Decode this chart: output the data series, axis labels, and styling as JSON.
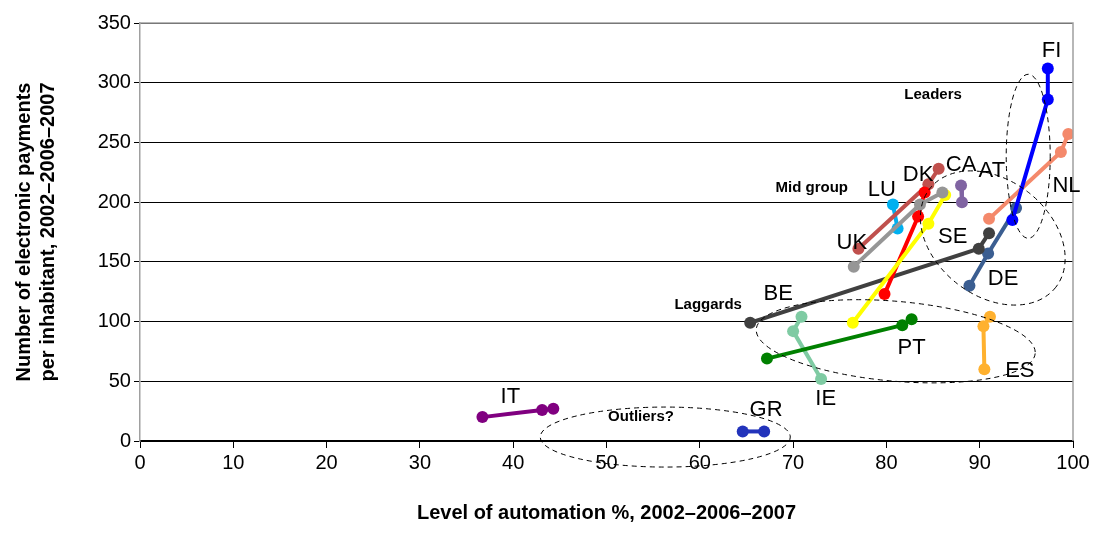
{
  "chart_data": {
    "type": "line",
    "xlabel": "Level of automation %, 2002–2006–2007",
    "ylabel": "Number of electronic payments per inhabitant, 2002–2006–2007",
    "xlim": [
      0,
      100
    ],
    "xticks": [
      0,
      10,
      20,
      30,
      40,
      50,
      60,
      70,
      80,
      90,
      100
    ],
    "ylim": [
      0,
      350
    ],
    "yticks": [
      0,
      50,
      100,
      150,
      200,
      250,
      300,
      350
    ],
    "grid": "y",
    "legend": false,
    "marker": "circle",
    "line_style": "solid",
    "series": [
      {
        "color": "#0000ff",
        "x": [
          97.3,
          97.3,
          93.5
        ],
        "values": [
          312,
          286,
          185
        ]
      },
      {
        "color": "#f4896b",
        "x": [
          99.5,
          98.7,
          91.0
        ],
        "values": [
          257,
          242,
          186
        ]
      },
      {
        "color": "#8064a2",
        "x": [
          88.0,
          88.1
        ],
        "values": [
          214,
          200
        ]
      },
      {
        "color": "#ffff00",
        "x": [
          86.3,
          84.5,
          76.4
        ],
        "values": [
          206,
          182,
          99
        ]
      },
      {
        "color": "#ff0000",
        "x": [
          84.1,
          83.4,
          79.8
        ],
        "values": [
          208,
          188,
          123
        ]
      },
      {
        "color": "#969696",
        "x": [
          86.0,
          83.6,
          76.5
        ],
        "values": [
          208,
          198,
          146
        ]
      },
      {
        "color": "#c0504d",
        "x": [
          85.6,
          84.5,
          77.0
        ],
        "values": [
          228,
          215,
          161
        ]
      },
      {
        "color": "#00b0f0",
        "x": [
          80.7,
          81.2
        ],
        "values": [
          198,
          178
        ]
      },
      {
        "color": "#404040",
        "x": [
          91.0,
          89.9,
          65.4
        ],
        "values": [
          174,
          161,
          99
        ]
      },
      {
        "color": "#3b5e91",
        "x": [
          93.9,
          90.9,
          88.9
        ],
        "values": [
          195,
          157,
          130
        ]
      },
      {
        "color": "#008000",
        "x": [
          82.7,
          81.7,
          67.2
        ],
        "values": [
          102,
          97,
          69
        ]
      },
      {
        "color": "#7fcba3",
        "x": [
          70.9,
          70.0,
          73.0
        ],
        "values": [
          104,
          92,
          52
        ]
      },
      {
        "color": "#ffb12f",
        "x": [
          91.1,
          90.4,
          90.5
        ],
        "values": [
          104,
          96,
          60
        ]
      },
      {
        "color": "#2233bb",
        "x": [
          64.6,
          66.9
        ],
        "values": [
          8,
          8
        ]
      },
      {
        "color": "#800080",
        "x": [
          36.7,
          43.1,
          44.3
        ],
        "values": [
          20,
          26,
          27
        ]
      }
    ],
    "annotations": [
      "Leaders",
      "Mid group",
      "Laggards",
      "Outliers?",
      "FI",
      "NL",
      "AT",
      "CA",
      "DK",
      "LU",
      "UK",
      "SE",
      "DE",
      "BE",
      "PT",
      "ES",
      "IE",
      "GR",
      "IT"
    ]
  }
}
